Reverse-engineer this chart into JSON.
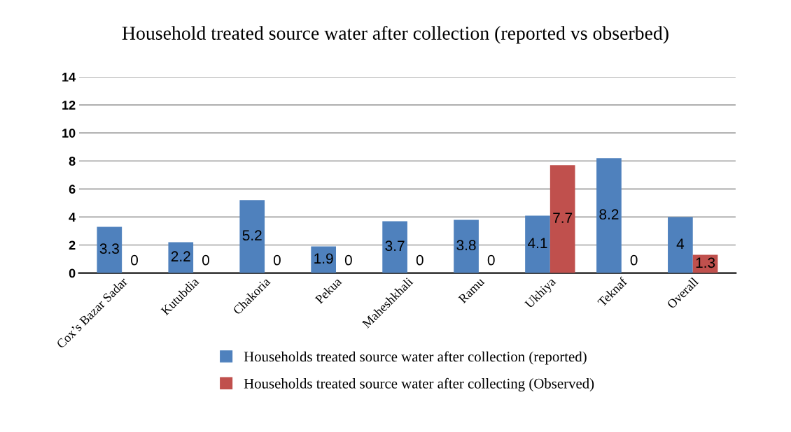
{
  "chart_data": {
    "type": "bar",
    "title": "Household treated source water after collection (reported vs obserbed)",
    "categories": [
      "Cox’s Bazar Sadar",
      "Kutubdia",
      "Chakoria",
      "Pekua",
      "Maheshkhali",
      "Ramu",
      "Ukhiya",
      "Teknaf",
      "Overall"
    ],
    "series": [
      {
        "name": "Households treated source water after collection (reported)",
        "color": "#4f81bd",
        "values": [
          3.3,
          2.2,
          5.2,
          1.9,
          3.7,
          3.8,
          4.1,
          8.2,
          4
        ]
      },
      {
        "name": "Households treated source water after collecting (Observed)",
        "color": "#c0504d",
        "values": [
          0,
          0,
          0,
          0,
          0,
          0,
          7.7,
          0,
          1.3
        ]
      }
    ],
    "ylim": [
      0,
      14
    ],
    "yticks": [
      0,
      2,
      4,
      6,
      8,
      10,
      12,
      14
    ],
    "grid": "y",
    "legend": "bottom",
    "data_labels": true
  }
}
